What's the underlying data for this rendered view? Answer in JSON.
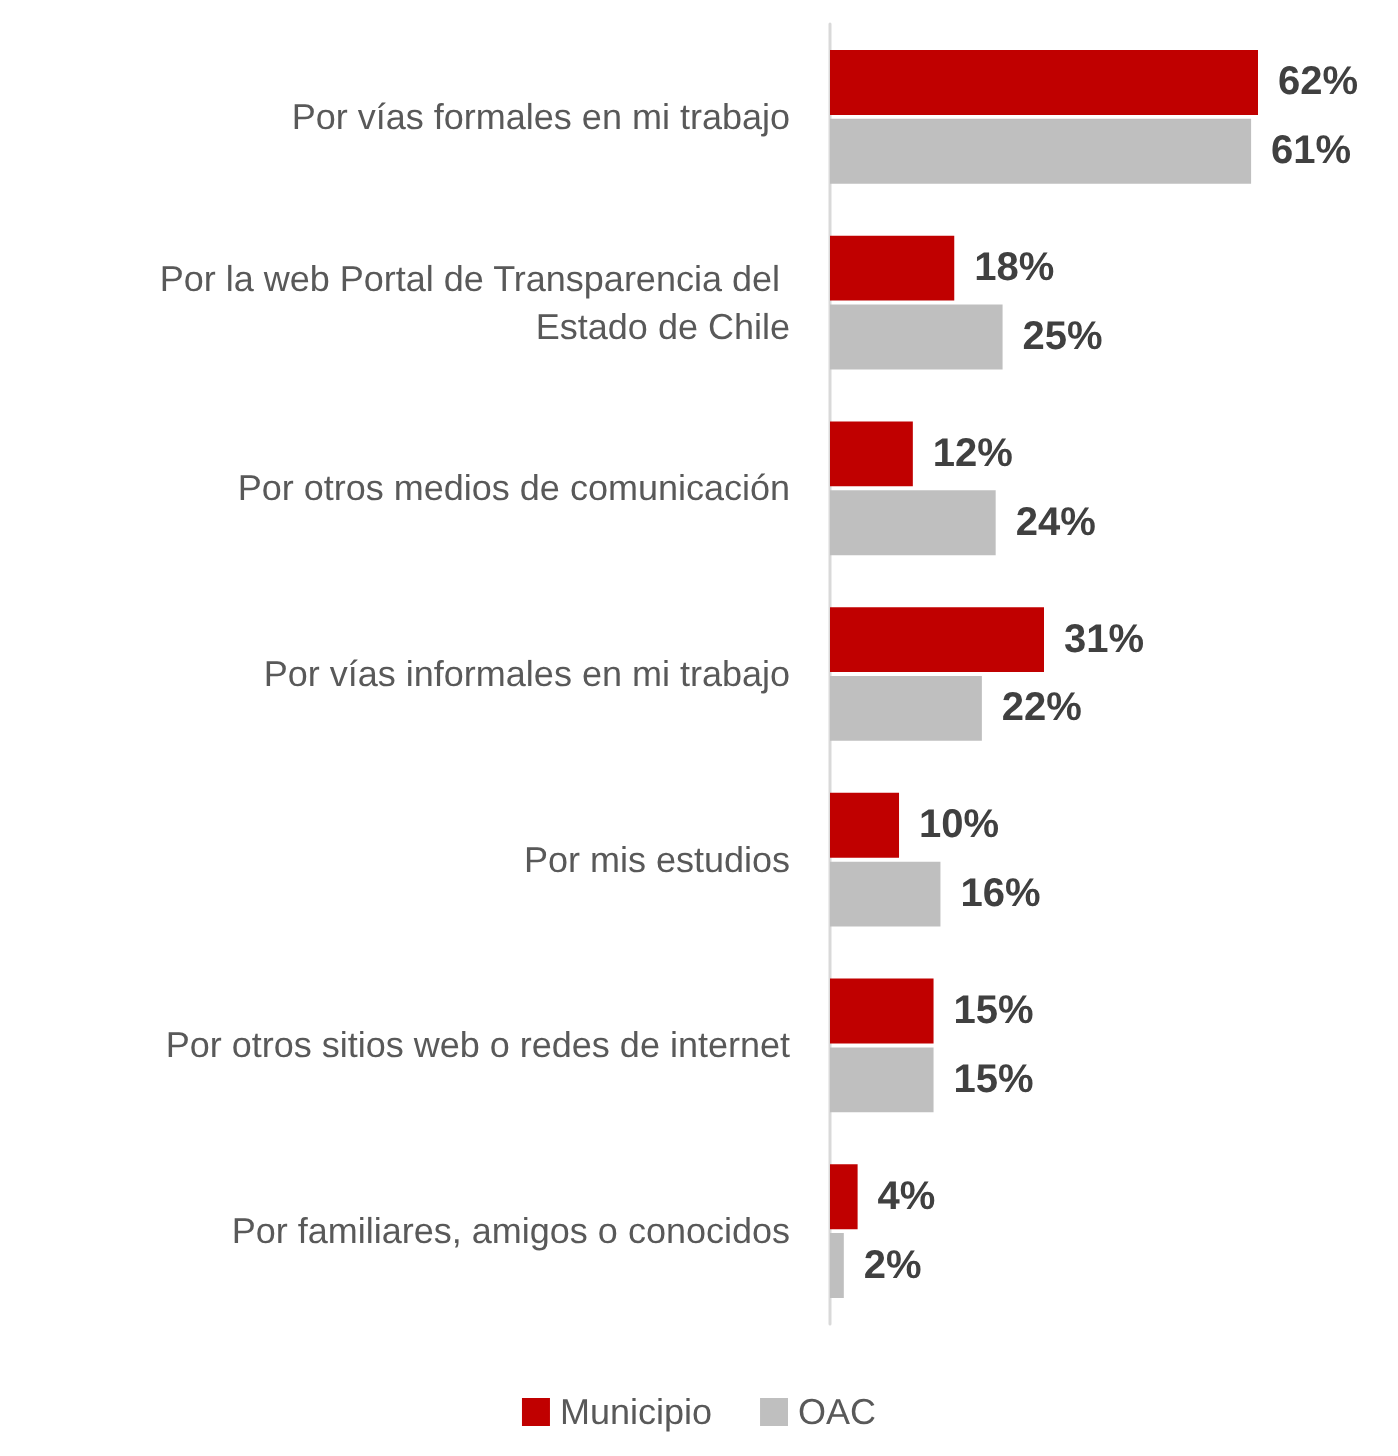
{
  "chart_data": {
    "type": "bar",
    "orientation": "horizontal",
    "categories": [
      "Por vías formales en mi trabajo",
      "Por la web Portal de Transparencia del Estado de Chile",
      "Por otros medios de comunicación",
      "Por vías informales en mi trabajo",
      "Por mis estudios",
      "Por otros sitios web o redes de internet",
      "Por familiares, amigos o conocidos"
    ],
    "series": [
      {
        "name": "Municipio",
        "color": "#c00000",
        "values": [
          62,
          18,
          12,
          31,
          10,
          15,
          4
        ],
        "value_labels": [
          "62%",
          "18%",
          "12%",
          "31%",
          "10%",
          "15%",
          "4%"
        ]
      },
      {
        "name": "OAC",
        "color": "#bfbfbf",
        "values": [
          61,
          25,
          24,
          22,
          16,
          15,
          2
        ],
        "value_labels": [
          "61%",
          "25%",
          "24%",
          "22%",
          "16%",
          "15%",
          "2%"
        ]
      }
    ],
    "legend": "bottom"
  }
}
